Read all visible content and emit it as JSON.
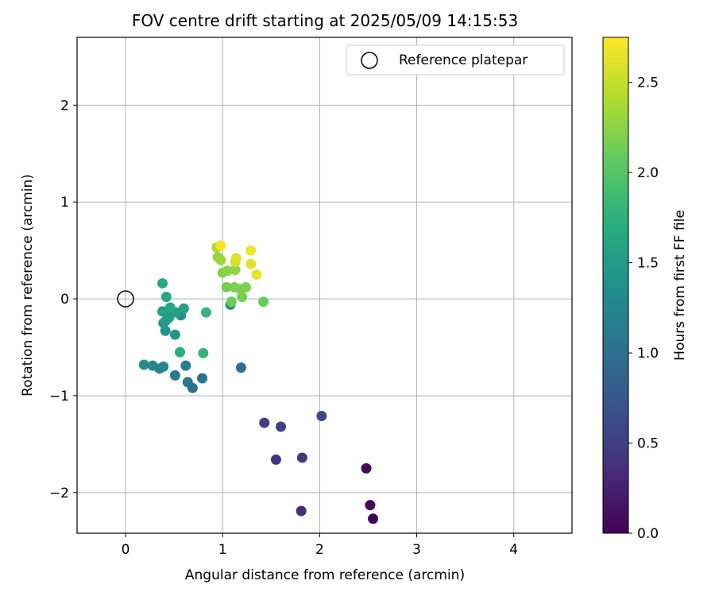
{
  "chart_data": {
    "type": "scatter",
    "title": "FOV centre drift starting at 2025/05/09 14:15:53",
    "xlabel": "Angular distance from reference (arcmin)",
    "ylabel": "Rotation from reference (arcmin)",
    "xlim": [
      -0.5,
      4.6
    ],
    "ylim": [
      -2.42,
      2.7
    ],
    "xticks": [
      0,
      1,
      2,
      3,
      4
    ],
    "xtick_labels": [
      "0",
      "1",
      "2",
      "3",
      "4"
    ],
    "yticks": [
      -2,
      -1,
      0,
      1,
      2
    ],
    "ytick_labels": [
      "−2",
      "−1",
      "0",
      "1",
      "2"
    ],
    "grid": true,
    "legend": {
      "placement": "top-right",
      "entries": [
        {
          "label": "Reference platepar",
          "marker": "open-circle"
        }
      ]
    },
    "reference_point": {
      "x": 0,
      "y": 0
    },
    "colorbar": {
      "label": "Hours from first FF file",
      "colormap": "viridis",
      "range": [
        0,
        2.75
      ],
      "ticks": [
        0,
        0.5,
        1,
        1.5,
        2,
        2.5
      ],
      "tick_labels": [
        "0.0",
        "0.5",
        "1.0",
        "1.5",
        "2.0",
        "2.5"
      ]
    },
    "points": [
      {
        "x": 2.55,
        "y": -2.27,
        "c": 0.0
      },
      {
        "x": 2.52,
        "y": -2.13,
        "c": 0.05
      },
      {
        "x": 2.48,
        "y": -1.75,
        "c": 0.08
      },
      {
        "x": 1.81,
        "y": -2.19,
        "c": 0.35
      },
      {
        "x": 1.55,
        "y": -1.66,
        "c": 0.4
      },
      {
        "x": 1.82,
        "y": -1.64,
        "c": 0.45
      },
      {
        "x": 1.43,
        "y": -1.28,
        "c": 0.5
      },
      {
        "x": 1.6,
        "y": -1.32,
        "c": 0.52
      },
      {
        "x": 2.02,
        "y": -1.21,
        "c": 0.6
      },
      {
        "x": 1.19,
        "y": -0.71,
        "c": 1.0
      },
      {
        "x": 0.69,
        "y": -0.92,
        "c": 1.0
      },
      {
        "x": 0.64,
        "y": -0.86,
        "c": 1.05
      },
      {
        "x": 0.79,
        "y": -0.82,
        "c": 1.05
      },
      {
        "x": 0.51,
        "y": -0.79,
        "c": 1.1
      },
      {
        "x": 0.62,
        "y": -0.69,
        "c": 1.15
      },
      {
        "x": 0.35,
        "y": -0.72,
        "c": 1.2
      },
      {
        "x": 0.39,
        "y": -0.7,
        "c": 1.25
      },
      {
        "x": 0.28,
        "y": -0.69,
        "c": 1.28
      },
      {
        "x": 0.19,
        "y": -0.68,
        "c": 1.32
      },
      {
        "x": 1.08,
        "y": -0.06,
        "c": 1.35
      },
      {
        "x": 0.57,
        "y": -0.17,
        "c": 1.4
      },
      {
        "x": 0.41,
        "y": -0.33,
        "c": 1.42
      },
      {
        "x": 0.51,
        "y": -0.37,
        "c": 1.45
      },
      {
        "x": 0.39,
        "y": -0.25,
        "c": 1.47
      },
      {
        "x": 0.45,
        "y": -0.19,
        "c": 1.48
      },
      {
        "x": 0.42,
        "y": -0.22,
        "c": 1.5
      },
      {
        "x": 0.47,
        "y": -0.12,
        "c": 1.52
      },
      {
        "x": 0.38,
        "y": -0.13,
        "c": 1.55
      },
      {
        "x": 0.52,
        "y": -0.14,
        "c": 1.55
      },
      {
        "x": 0.6,
        "y": -0.1,
        "c": 1.58
      },
      {
        "x": 0.46,
        "y": -0.09,
        "c": 1.6
      },
      {
        "x": 0.42,
        "y": 0.02,
        "c": 1.62
      },
      {
        "x": 0.38,
        "y": 0.16,
        "c": 1.65
      },
      {
        "x": 0.56,
        "y": -0.55,
        "c": 1.72
      },
      {
        "x": 0.8,
        "y": -0.56,
        "c": 1.78
      },
      {
        "x": 0.83,
        "y": -0.14,
        "c": 1.8
      },
      {
        "x": 1.42,
        "y": -0.03,
        "c": 2.1
      },
      {
        "x": 1.09,
        "y": -0.03,
        "c": 2.12
      },
      {
        "x": 1.2,
        "y": 0.02,
        "c": 2.15
      },
      {
        "x": 1.04,
        "y": 0.12,
        "c": 2.15
      },
      {
        "x": 1.12,
        "y": 0.12,
        "c": 2.18
      },
      {
        "x": 1.18,
        "y": 0.1,
        "c": 2.2
      },
      {
        "x": 1.24,
        "y": 0.12,
        "c": 2.2
      },
      {
        "x": 1.0,
        "y": 0.27,
        "c": 2.22
      },
      {
        "x": 1.05,
        "y": 0.29,
        "c": 2.25
      },
      {
        "x": 1.13,
        "y": 0.3,
        "c": 2.27
      },
      {
        "x": 0.95,
        "y": 0.43,
        "c": 2.3
      },
      {
        "x": 0.98,
        "y": 0.4,
        "c": 2.32
      },
      {
        "x": 0.94,
        "y": 0.53,
        "c": 2.38
      },
      {
        "x": 1.13,
        "y": 0.38,
        "c": 2.55
      },
      {
        "x": 1.14,
        "y": 0.42,
        "c": 2.6
      },
      {
        "x": 1.29,
        "y": 0.36,
        "c": 2.62
      },
      {
        "x": 1.35,
        "y": 0.25,
        "c": 2.65
      },
      {
        "x": 1.29,
        "y": 0.5,
        "c": 2.68
      },
      {
        "x": 0.98,
        "y": 0.55,
        "c": 2.72
      }
    ]
  }
}
